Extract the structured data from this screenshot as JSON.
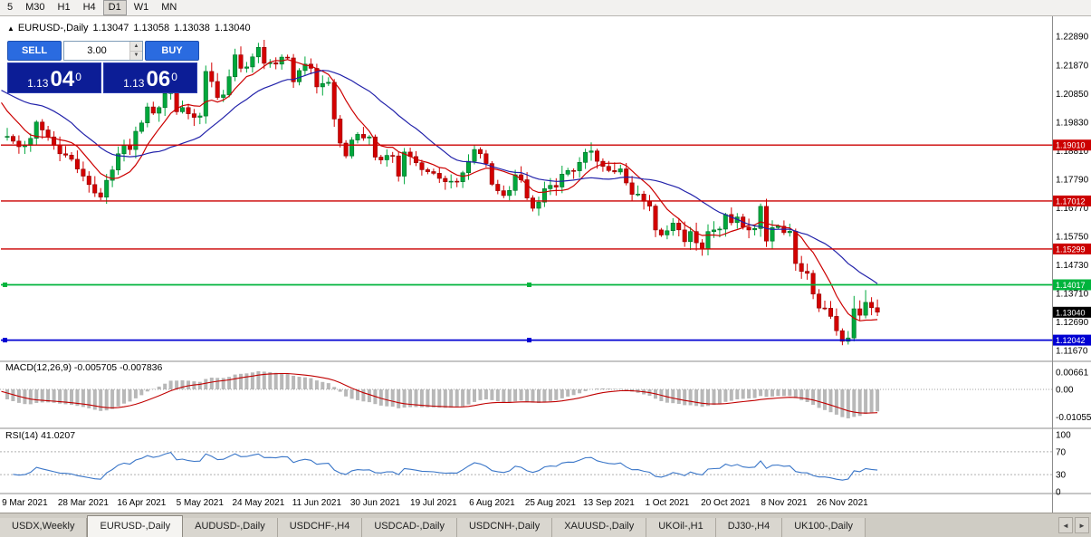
{
  "toolbar": {
    "timeframe_buttons": [
      "5",
      "M30",
      "H1",
      "H4",
      "D1",
      "W1",
      "MN"
    ],
    "active_timeframe": "D1"
  },
  "chart_header": {
    "collapse_icon": "▲",
    "symbol": "EURUSD-,Daily",
    "open": "1.13047",
    "high": "1.13058",
    "low": "1.13038",
    "close": "1.13040"
  },
  "one_click_trading": {
    "sell_label": "SELL",
    "buy_label": "BUY",
    "lot_size": "3.00",
    "spinner_up": "▲",
    "spinner_down": "▼",
    "sell_price": {
      "prefix": "1.13",
      "digits": "04",
      "pip": "0"
    },
    "buy_price": {
      "prefix": "1.13",
      "digits": "06",
      "pip": "0"
    }
  },
  "chart_data": {
    "type": "candlestick",
    "symbol": "EURUSD",
    "timeframe": "Daily",
    "ylim": [
      1.1135,
      1.2335
    ],
    "price_axis_ticks": [
      "1.22890",
      "1.21870",
      "1.20850",
      "1.19830",
      "1.18810",
      "1.17790",
      "1.16770",
      "1.15750",
      "1.14730",
      "1.13710",
      "1.12690",
      "1.11670"
    ],
    "x_labels": [
      "9 Mar 2021",
      "28 Mar 2021",
      "16 Apr 2021",
      "5 May 2021",
      "24 May 2021",
      "11 Jun 2021",
      "30 Jun 2021",
      "19 Jul 2021",
      "6 Aug 2021",
      "25 Aug 2021",
      "13 Sep 2021",
      "1 Oct 2021",
      "20 Oct 2021",
      "8 Nov 2021",
      "26 Nov 2021"
    ],
    "x_label_first_candle": 3,
    "x_label_step": 10,
    "horizontal_lines": [
      {
        "price": 1.1901,
        "label": "1.19010",
        "color": "#CC0000",
        "selected": false
      },
      {
        "price": 1.17012,
        "label": "1.17012",
        "color": "#CC0000",
        "selected": false
      },
      {
        "price": 1.15299,
        "label": "1.15299",
        "color": "#CC0000",
        "selected": false
      },
      {
        "price": 1.14017,
        "label": "1.14017",
        "color": "#00B43C",
        "selected": true
      },
      {
        "price": 1.12042,
        "label": "1.12042",
        "color": "#0000D2",
        "selected": true
      }
    ],
    "current_price": {
      "value": 1.1304,
      "label": "1.13040",
      "tag_color": "#000000"
    },
    "candle_colors": {
      "up": "#00A83C",
      "down": "#D40000"
    },
    "ma_lines": [
      {
        "period": 8,
        "color": "#CC0000"
      },
      {
        "period": 21,
        "color": "#2222AA"
      }
    ],
    "warmup_closes": [
      1.211,
      1.212,
      1.2135,
      1.2155,
      1.217,
      1.2243,
      1.2176,
      1.2093,
      1.207,
      1.209,
      1.2065,
      1.202,
      1.1975,
      1.1932
    ],
    "closes": [
      1.1932,
      1.1915,
      1.1895,
      1.19,
      1.1925,
      1.1983,
      1.1955,
      1.193,
      1.19,
      1.187,
      1.1865,
      1.185,
      1.1815,
      1.179,
      1.176,
      1.173,
      1.1715,
      1.1775,
      1.1812,
      1.187,
      1.19,
      1.1885,
      1.195,
      1.198,
      1.2037,
      1.2015,
      1.2035,
      1.2085,
      1.2125,
      1.202,
      1.2035,
      1.2013,
      1.2,
      1.2005,
      1.2164,
      1.2128,
      1.2071,
      1.208,
      1.2145,
      1.2223,
      1.2175,
      1.218,
      1.2216,
      1.225,
      1.2193,
      1.2195,
      1.219,
      1.2215,
      1.2212,
      1.2127,
      1.2167,
      1.219,
      1.2175,
      1.2109,
      1.2121,
      1.2125,
      1.1994,
      1.1908,
      1.1862,
      1.1919,
      1.1939,
      1.1926,
      1.193,
      1.1858,
      1.1848,
      1.1864,
      1.1862,
      1.179,
      1.1876,
      1.186,
      1.1838,
      1.1813,
      1.1806,
      1.18,
      1.1782,
      1.177,
      1.1772,
      1.177,
      1.1802,
      1.1843,
      1.1885,
      1.187,
      1.1835,
      1.1761,
      1.1738,
      1.1721,
      1.1739,
      1.1795,
      1.1777,
      1.1712,
      1.1675,
      1.1697,
      1.1745,
      1.1757,
      1.1751,
      1.1797,
      1.181,
      1.1809,
      1.1839,
      1.1875,
      1.188,
      1.1843,
      1.1825,
      1.181,
      1.1805,
      1.1816,
      1.1766,
      1.1725,
      1.1726,
      1.17,
      1.1683,
      1.1598,
      1.158,
      1.1595,
      1.1622,
      1.1598,
      1.1556,
      1.1592,
      1.1552,
      1.1529,
      1.1592,
      1.1598,
      1.1601,
      1.1653,
      1.1624,
      1.1644,
      1.1608,
      1.1598,
      1.1603,
      1.1682,
      1.1558,
      1.1606,
      1.1611,
      1.1588,
      1.1593,
      1.1478,
      1.145,
      1.1443,
      1.1369,
      1.1319,
      1.1318,
      1.1289,
      1.1238,
      1.12,
      1.1212,
      1.1316,
      1.1293,
      1.1339,
      1.132,
      1.1304
    ],
    "wick_overrides": [
      {
        "i": 5,
        "high": 1.199
      },
      {
        "i": 16,
        "low": 1.1704
      },
      {
        "i": 28,
        "high": 1.215
      },
      {
        "i": 39,
        "high": 1.2245
      },
      {
        "i": 43,
        "high": 1.2266
      },
      {
        "i": 90,
        "low": 1.1664
      },
      {
        "i": 129,
        "high": 1.1692
      },
      {
        "i": 143,
        "low": 1.1186
      },
      {
        "i": 145,
        "high": 1.1362
      },
      {
        "i": 147,
        "high": 1.1383
      }
    ],
    "macd": {
      "fast": 12,
      "slow": 26,
      "signal": 9,
      "histogram_color": "#B8B8B8",
      "signal_color": "#C00000",
      "last_values": "-0.005705 -0.007836"
    },
    "rsi": {
      "period": 14,
      "color": "#3A76C8",
      "last_value": "41.0207",
      "levels": [
        70,
        30
      ]
    }
  },
  "indicator_panels": {
    "macd": {
      "label": "MACD(12,26,9) -0.005705 -0.007836",
      "axis_ticks": [
        [
          "0.00661",
          0.00661
        ],
        [
          "0.00",
          0
        ],
        [
          "-0.01055",
          -0.01055
        ]
      ]
    },
    "rsi": {
      "label": "RSI(14) 41.0207",
      "axis_ticks": [
        [
          "100",
          100
        ],
        [
          "70",
          70
        ],
        [
          "30",
          30
        ],
        [
          "0",
          0
        ]
      ]
    }
  },
  "tabs": {
    "items": [
      "USDX,Weekly",
      "EURUSD-,Daily",
      "AUDUSD-,Daily",
      "USDCHF-,H4",
      "USDCAD-,Daily",
      "USDCNH-,Daily",
      "XAUUSD-,Daily",
      "UKOil-,H1",
      "DJ30-,H4",
      "UK100-,Daily"
    ],
    "active": "EURUSD-,Daily"
  },
  "scroll_arrows": {
    "left": "◄",
    "right": "►"
  }
}
